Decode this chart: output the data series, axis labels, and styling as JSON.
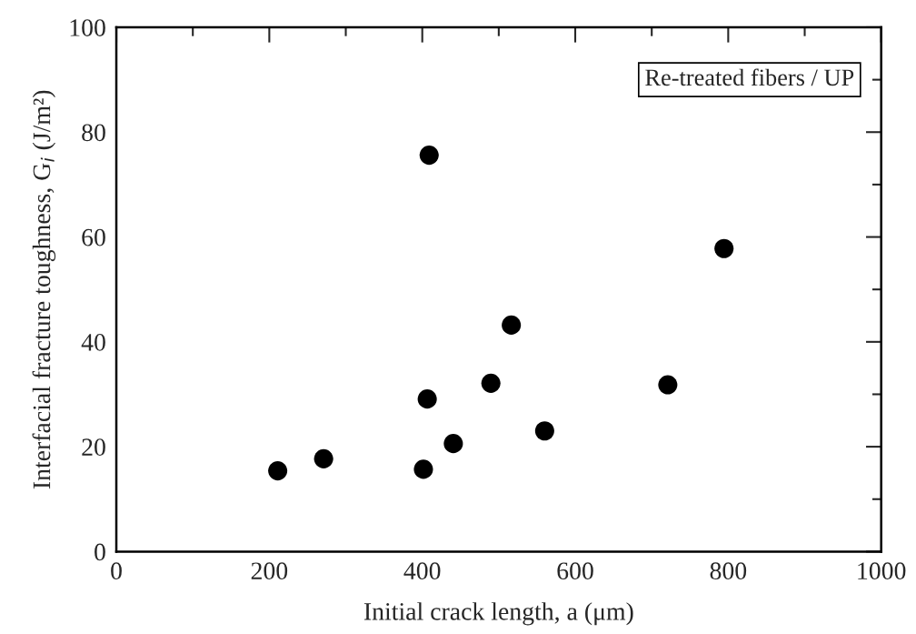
{
  "chart_data": {
    "type": "scatter",
    "xlabel": "Initial crack length, a (μm)",
    "ylabel": "Interfacial fracture toughness, G$_{i}$ (J/m²)",
    "x": [
      211,
      271,
      401.5,
      406.5,
      409,
      440.6,
      489.7,
      516.4,
      560,
      721,
      794.5
    ],
    "values": [
      15.4,
      17.7,
      15.7,
      29.1,
      75.6,
      20.6,
      32.1,
      43.2,
      23.0,
      31.8,
      57.8
    ],
    "color": "#000000",
    "marker": "circle",
    "xlim": [
      0,
      1000
    ],
    "ylim": [
      0,
      100
    ],
    "xticks": [
      0,
      {
        "value": 100,
        "label": null
      },
      200,
      {
        "value": 300,
        "label": null
      },
      400,
      {
        "value": 500,
        "label": null
      },
      600,
      {
        "value": 700,
        "label": null
      },
      800,
      {
        "value": 900,
        "label": null
      },
      1000
    ],
    "yticks": [
      0,
      {
        "value": 10,
        "label": null
      },
      20,
      {
        "value": 30,
        "label": null
      },
      40,
      {
        "value": 50,
        "label": null
      },
      60,
      {
        "value": 70,
        "label": null
      },
      80,
      {
        "value": 90,
        "label": null
      },
      100
    ],
    "annotations": [
      "Re-treated fibers / UP"
    ],
    "grid": false,
    "legend": false
  }
}
